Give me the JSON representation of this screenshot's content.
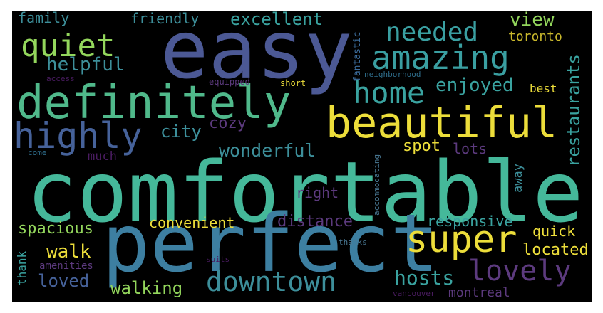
{
  "image": {
    "background": "#000000",
    "words": [
      {
        "key": "comfortable",
        "text": "comfortable",
        "color": "#45b89a"
      },
      {
        "key": "perfect",
        "text": "perfect",
        "color": "#3d7fa1"
      },
      {
        "key": "easy",
        "text": "easy",
        "color": "#4c5995"
      },
      {
        "key": "definitely",
        "text": "definitely",
        "color": "#50b98b"
      },
      {
        "key": "beautiful",
        "text": "beautiful",
        "color": "#ecdd3a"
      },
      {
        "key": "amazing",
        "text": "amazing",
        "color": "#3a9fa1"
      },
      {
        "key": "highly",
        "text": "highly",
        "color": "#46629a"
      },
      {
        "key": "home",
        "text": "home",
        "color": "#3aa3a0"
      },
      {
        "key": "quiet",
        "text": "quiet",
        "color": "#93d65c"
      },
      {
        "key": "super",
        "text": "super",
        "color": "#ecdd3a"
      },
      {
        "key": "lovely",
        "text": "lovely",
        "color": "#5c3a7e"
      },
      {
        "key": "needed",
        "text": "needed",
        "color": "#3a9fa1"
      },
      {
        "key": "downtown",
        "text": "downtown",
        "color": "#3d8f9a"
      },
      {
        "key": "wonderful",
        "text": "wonderful",
        "color": "#3d8f9a"
      },
      {
        "key": "enjoyed",
        "text": "enjoyed",
        "color": "#3aa3a0"
      },
      {
        "key": "restaurants",
        "text": "restaurants",
        "color": "#3aa3a0"
      },
      {
        "key": "excellent",
        "text": "excellent",
        "color": "#3aa3a0"
      },
      {
        "key": "helpful",
        "text": "helpful",
        "color": "#3d8f9a"
      },
      {
        "key": "friendly",
        "text": "friendly",
        "color": "#3d8f9a"
      },
      {
        "key": "family",
        "text": "family",
        "color": "#3d8f9a"
      },
      {
        "key": "view",
        "text": "view",
        "color": "#93d65c"
      },
      {
        "key": "toronto",
        "text": "toronto",
        "color": "#c9b82c"
      },
      {
        "key": "city",
        "text": "city",
        "color": "#3d8f9a"
      },
      {
        "key": "cozy",
        "text": "cozy",
        "color": "#5c3a7e"
      },
      {
        "key": "spot",
        "text": "spot",
        "color": "#ecdd3a"
      },
      {
        "key": "lots",
        "text": "lots",
        "color": "#5c3a7e"
      },
      {
        "key": "much",
        "text": "much",
        "color": "#4a1c61"
      },
      {
        "key": "away",
        "text": "away",
        "color": "#3d8f9a"
      },
      {
        "key": "best",
        "text": "best",
        "color": "#ecdd3a"
      },
      {
        "key": "right",
        "text": "right",
        "color": "#5c3a7e"
      },
      {
        "key": "fantastic",
        "text": "fantastic",
        "color": "#3d6f9f"
      },
      {
        "key": "neighborhood",
        "text": "neighborhood",
        "color": "#2e6c8a"
      },
      {
        "key": "access",
        "text": "access",
        "color": "#4a1c61"
      },
      {
        "key": "equipped",
        "text": "equipped",
        "color": "#5c3a7e"
      },
      {
        "key": "short",
        "text": "short",
        "color": "#ecdd3a"
      },
      {
        "key": "come",
        "text": "come",
        "color": "#2e6c8a"
      },
      {
        "key": "accommodating",
        "text": "accommodating",
        "color": "#4b7c98"
      },
      {
        "key": "convenient",
        "text": "convenient",
        "color": "#ecdd3a"
      },
      {
        "key": "distance",
        "text": "distance",
        "color": "#5c3a7e"
      },
      {
        "key": "responsive",
        "text": "responsive",
        "color": "#3aa3a0"
      },
      {
        "key": "quick",
        "text": "quick",
        "color": "#ecdd3a"
      },
      {
        "key": "located",
        "text": "located",
        "color": "#ecdd3a"
      },
      {
        "key": "spacious",
        "text": "spacious",
        "color": "#93d65c"
      },
      {
        "key": "walk",
        "text": "walk",
        "color": "#ecdd3a"
      },
      {
        "key": "thank",
        "text": "thank",
        "color": "#3aa3a0"
      },
      {
        "key": "amenities",
        "text": "amenities",
        "color": "#5c3a7e"
      },
      {
        "key": "loved",
        "text": "loved",
        "color": "#46629a"
      },
      {
        "key": "walking",
        "text": "walking",
        "color": "#93d65c"
      },
      {
        "key": "hosts",
        "text": "hosts",
        "color": "#3aa3a0"
      },
      {
        "key": "suits",
        "text": "suits",
        "color": "#4a1c61"
      },
      {
        "key": "thanks",
        "text": "thanks",
        "color": "#4b7c98"
      },
      {
        "key": "vancouver",
        "text": "vancouver",
        "color": "#4a1c61"
      },
      {
        "key": "montreal",
        "text": "montreal",
        "color": "#5c3a7e"
      }
    ]
  }
}
